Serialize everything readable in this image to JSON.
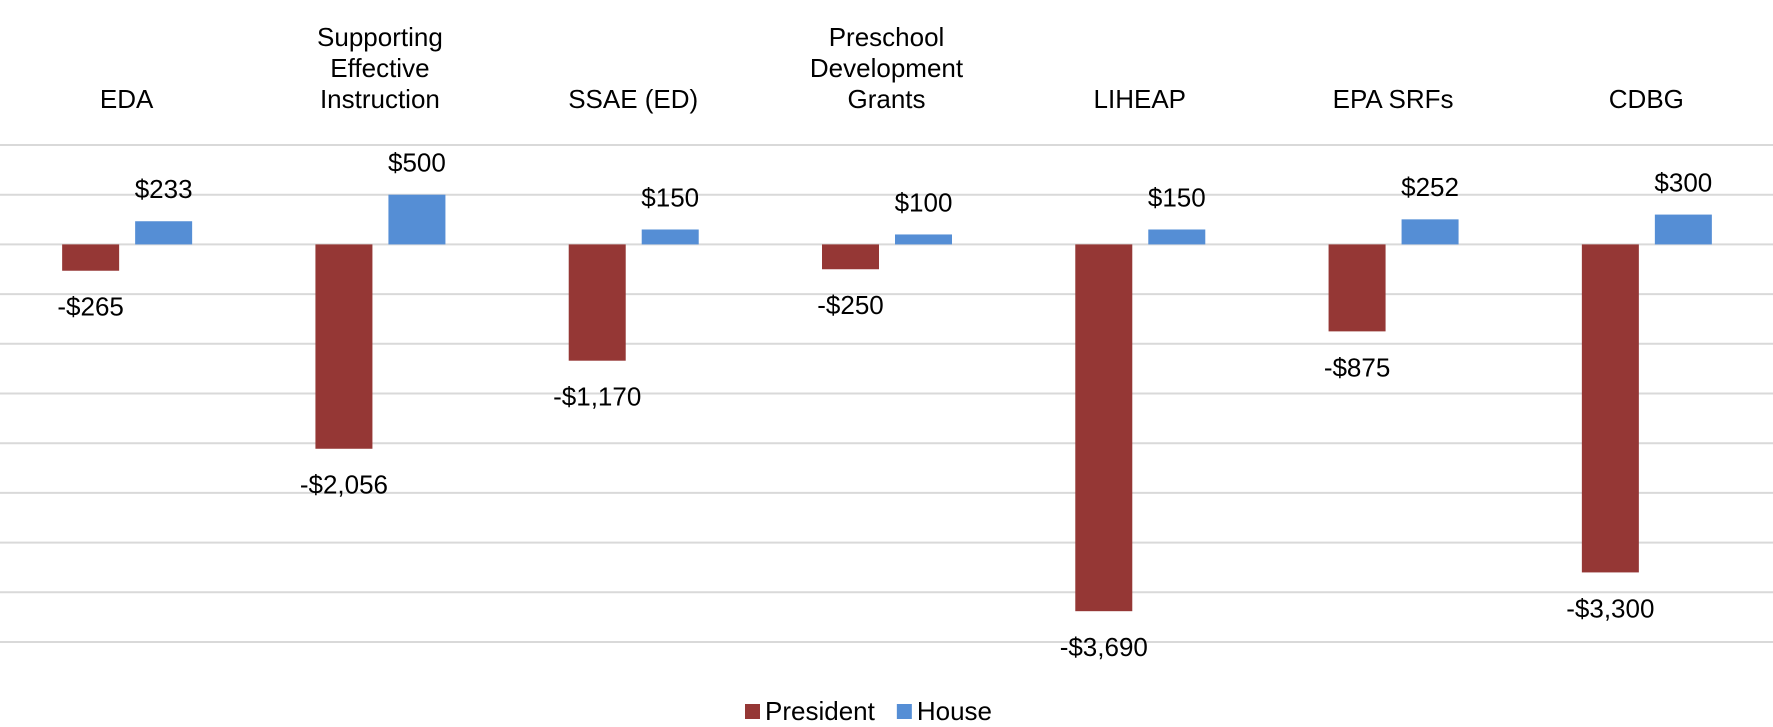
{
  "chart_data": {
    "type": "bar",
    "categories": [
      "EDA",
      "Supporting Effective Instruction",
      "SSAE (ED)",
      "Preschool Development Grants",
      "LIHEAP",
      "EPA SRFs",
      "CDBG"
    ],
    "series": [
      {
        "name": "President",
        "color": "#953735",
        "values": [
          -265,
          -2056,
          -1170,
          -250,
          -3690,
          -875,
          -3300
        ],
        "value_labels": [
          "-$265",
          "-$2,056",
          "-$1,170",
          "-$250",
          "-$3,690",
          "-$875",
          "-$3,300"
        ]
      },
      {
        "name": "House",
        "color": "#558ed5",
        "values": [
          233,
          500,
          150,
          100,
          150,
          252,
          300
        ],
        "value_labels": [
          "$233",
          "$500",
          "$150",
          "$100",
          "$150",
          "$252",
          "$300"
        ]
      }
    ],
    "ylim": [
      -4000,
      1000
    ],
    "yticks": [
      -4000,
      -3500,
      -3000,
      -2500,
      -2000,
      -1500,
      -1000,
      -500,
      0,
      500,
      1000
    ],
    "grid": true
  }
}
